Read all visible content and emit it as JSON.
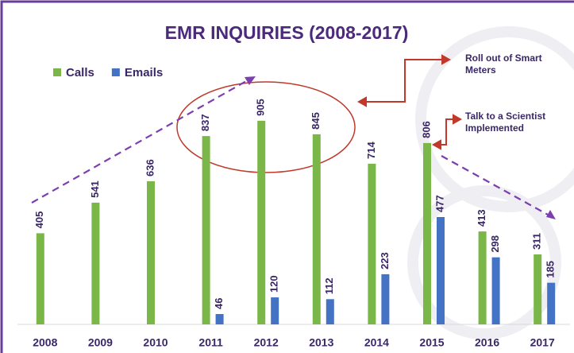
{
  "chart_data": {
    "type": "bar",
    "title": "EMR INQUIRIES (2008-2017)",
    "categories": [
      "2008",
      "2009",
      "2010",
      "2011",
      "2012",
      "2013",
      "2014",
      "2015",
      "2016",
      "2017"
    ],
    "series": [
      {
        "name": "Calls",
        "color": "#7ab648",
        "values": [
          405,
          541,
          636,
          837,
          905,
          845,
          714,
          806,
          413,
          311
        ]
      },
      {
        "name": "Emails",
        "color": "#4472c4",
        "values": [
          null,
          null,
          null,
          46,
          120,
          112,
          223,
          477,
          298,
          185
        ]
      }
    ],
    "ylim": [
      0,
      1000
    ],
    "legend": "top-left",
    "annotations": [
      "Roll out of Smart Meters",
      "Talk to a Scientist Implemented"
    ]
  }
}
